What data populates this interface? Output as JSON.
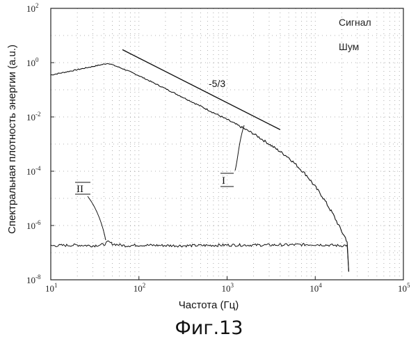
{
  "chart_data": {
    "type": "line",
    "xscale": "log",
    "yscale": "log",
    "xlim": [
      10,
      100000
    ],
    "ylim": [
      1e-08,
      100
    ],
    "xlabel": "Частота (Гц)",
    "ylabel": "Спектральная плотность энергии (a.u.)",
    "x_ticks": [
      {
        "base": "10",
        "exp": "1",
        "value": 10
      },
      {
        "base": "10",
        "exp": "2",
        "value": 100
      },
      {
        "base": "10",
        "exp": "3",
        "value": 1000
      },
      {
        "base": "10",
        "exp": "4",
        "value": 10000
      },
      {
        "base": "10",
        "exp": "5",
        "value": 100000
      }
    ],
    "y_ticks": [
      {
        "base": "10",
        "exp": "-8",
        "value": 1e-08
      },
      {
        "base": "10",
        "exp": "-6",
        "value": 1e-06
      },
      {
        "base": "10",
        "exp": "-4",
        "value": 0.0001
      },
      {
        "base": "10",
        "exp": "-2",
        "value": 0.01
      },
      {
        "base": "10",
        "exp": "0",
        "value": 1
      },
      {
        "base": "10",
        "exp": "2",
        "value": 100
      }
    ],
    "grid": true,
    "legend": {
      "position": "top-right",
      "entries": [
        "Сигнал",
        "Шум"
      ]
    },
    "series": [
      {
        "name": "Сигнал",
        "label": "I",
        "x": [
          10,
          20,
          45,
          70,
          100,
          200,
          500,
          1000,
          2000,
          3000,
          5000,
          8000,
          12000,
          16000,
          20000,
          22000,
          23000,
          24000
        ],
        "y": [
          0.35,
          0.55,
          0.95,
          0.55,
          0.33,
          0.11,
          0.025,
          0.008,
          0.0024,
          0.001,
          0.00032,
          7e-05,
          1.2e-05,
          2.5e-06,
          6e-07,
          3.5e-07,
          2.5e-07,
          2e-08
        ]
      },
      {
        "name": "Шум",
        "label": "II",
        "x": [
          10,
          20,
          30,
          40,
          45,
          50,
          70,
          100,
          300,
          1000,
          3000,
          10000,
          20000,
          23000,
          24000
        ],
        "y": [
          1.8e-07,
          1.9e-07,
          1.8e-07,
          2e-07,
          2.5e-07,
          2.1e-07,
          1.8e-07,
          1.9e-07,
          1.8e-07,
          1.9e-07,
          1.9e-07,
          2e-07,
          1.8e-07,
          1.9e-07,
          2e-08
        ]
      }
    ],
    "reference_line": {
      "label": "-5/3",
      "x": [
        65,
        4000
      ],
      "y": [
        3.0,
        0.0034
      ]
    },
    "caption": "Фиг.13"
  }
}
